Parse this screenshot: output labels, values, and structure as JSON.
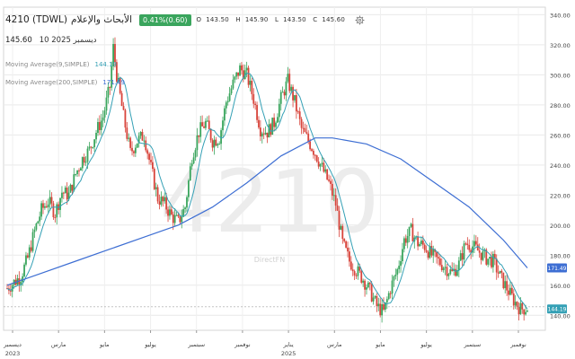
{
  "header": {
    "symbol": "4210 (TDWL)",
    "name": "الأبحاث والإعلام",
    "change_badge": "0.41%(0.60)",
    "ohlc": {
      "o_label": "O",
      "o": "143.50",
      "h_label": "H",
      "h": "145.90",
      "l_label": "L",
      "l": "143.50",
      "c_label": "C",
      "c": "145.60"
    }
  },
  "last": {
    "price": "145.60",
    "date": "10 2025 ديسمبر"
  },
  "indicators": [
    {
      "label": "Moving Average(9,SIMPLE)",
      "value": "144.19",
      "color": "#34a0b5"
    },
    {
      "label": "Moving Average(200,SIMPLE)",
      "value": "171.49",
      "color": "#3d6ed3"
    }
  ],
  "watermark": "4210",
  "brand": "DirectFN",
  "colors": {
    "up": "#3aa55d",
    "down": "#d8443b",
    "ma9": "#34a0b5",
    "ma200": "#3d6ed3",
    "badge": "#3aa55d"
  },
  "chart_data": {
    "type": "candlestick",
    "ylim": [
      130,
      345
    ],
    "yticks": [
      "140.00",
      "160.00",
      "180.00",
      "200.00",
      "220.00",
      "240.00",
      "260.00",
      "280.00",
      "300.00",
      "320.00",
      "340.00"
    ],
    "xlabels": [
      "ديسمبر",
      "مارس",
      "مايو",
      "يوليو",
      "سبتمبر",
      "نوفمبر",
      "يناير",
      "مارس",
      "مايو",
      "يوليو",
      "سبتمبر",
      "نوفمبر"
    ],
    "year_labels": [
      "2023",
      "2025"
    ],
    "price_labels": [
      {
        "text": "171.49",
        "value": 171.49,
        "color": "#3d6ed3"
      },
      {
        "text": "144.19",
        "value": 144.19,
        "color": "#34a0b5"
      }
    ],
    "close_path": [
      [
        0,
        158
      ],
      [
        2,
        162
      ],
      [
        4,
        166
      ],
      [
        6,
        178
      ],
      [
        8,
        196
      ],
      [
        10,
        210
      ],
      [
        12,
        216
      ],
      [
        14,
        208
      ],
      [
        16,
        222
      ],
      [
        18,
        220
      ],
      [
        20,
        234
      ],
      [
        22,
        244
      ],
      [
        24,
        250
      ],
      [
        26,
        262
      ],
      [
        28,
        272
      ],
      [
        30,
        292
      ],
      [
        31,
        318
      ],
      [
        32,
        300
      ],
      [
        34,
        272
      ],
      [
        36,
        248
      ],
      [
        38,
        256
      ],
      [
        40,
        260
      ],
      [
        42,
        238
      ],
      [
        44,
        218
      ],
      [
        46,
        214
      ],
      [
        48,
        206
      ],
      [
        50,
        202
      ],
      [
        52,
        212
      ],
      [
        54,
        246
      ],
      [
        56,
        262
      ],
      [
        58,
        268
      ],
      [
        60,
        256
      ],
      [
        62,
        258
      ],
      [
        64,
        282
      ],
      [
        66,
        294
      ],
      [
        68,
        304
      ],
      [
        70,
        300
      ],
      [
        72,
        284
      ],
      [
        74,
        264
      ],
      [
        76,
        262
      ],
      [
        78,
        268
      ],
      [
        80,
        284
      ],
      [
        82,
        296
      ],
      [
        84,
        282
      ],
      [
        86,
        264
      ],
      [
        88,
        256
      ],
      [
        90,
        248
      ],
      [
        92,
        238
      ],
      [
        94,
        228
      ],
      [
        96,
        214
      ],
      [
        98,
        188
      ],
      [
        100,
        176
      ],
      [
        102,
        170
      ],
      [
        104,
        164
      ],
      [
        106,
        156
      ],
      [
        108,
        146
      ],
      [
        110,
        142
      ],
      [
        112,
        158
      ],
      [
        114,
        170
      ],
      [
        116,
        190
      ],
      [
        118,
        196
      ],
      [
        120,
        188
      ],
      [
        122,
        186
      ],
      [
        124,
        180
      ],
      [
        126,
        176
      ],
      [
        128,
        172
      ],
      [
        130,
        168
      ],
      [
        132,
        174
      ],
      [
        134,
        188
      ],
      [
        136,
        186
      ],
      [
        138,
        182
      ],
      [
        140,
        178
      ],
      [
        142,
        176
      ],
      [
        144,
        166
      ],
      [
        146,
        158
      ],
      [
        148,
        150
      ],
      [
        150,
        144
      ],
      [
        152,
        145
      ]
    ],
    "ma200_path": [
      [
        0,
        160
      ],
      [
        10,
        168
      ],
      [
        20,
        176
      ],
      [
        30,
        184
      ],
      [
        40,
        192
      ],
      [
        50,
        200
      ],
      [
        60,
        212
      ],
      [
        70,
        228
      ],
      [
        80,
        246
      ],
      [
        90,
        258
      ],
      [
        95,
        258
      ],
      [
        105,
        254
      ],
      [
        115,
        244
      ],
      [
        125,
        228
      ],
      [
        135,
        212
      ],
      [
        145,
        190
      ],
      [
        152,
        171.49
      ]
    ]
  }
}
